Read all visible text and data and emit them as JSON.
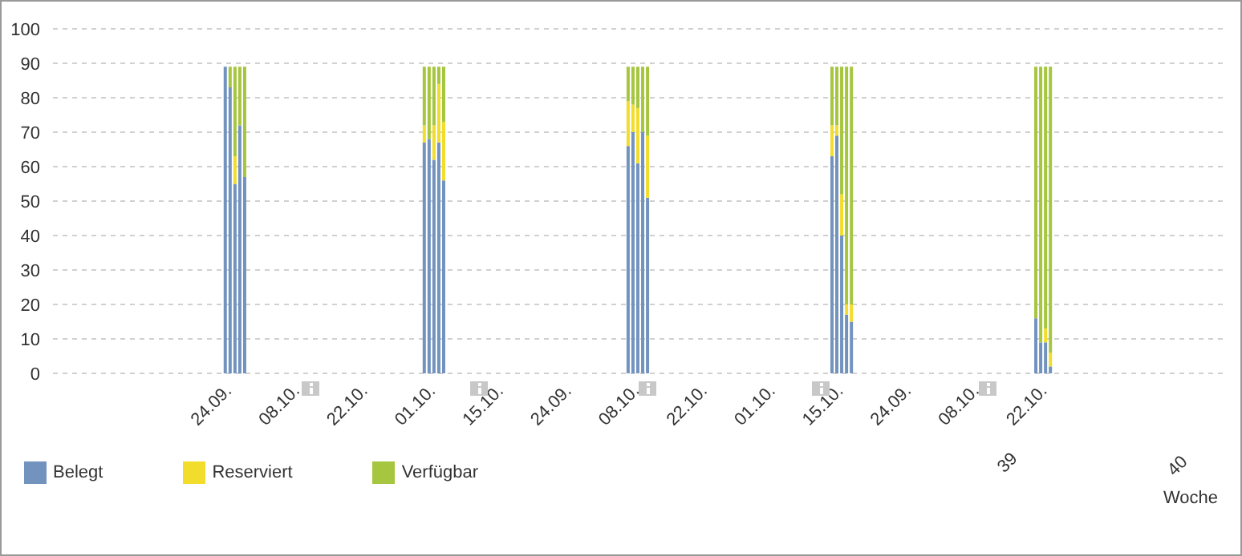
{
  "chart_data": {
    "type": "bar",
    "stacked": true,
    "xlabel": "Woche",
    "annotations": [
      "39",
      "40"
    ],
    "categories": [
      null,
      null,
      null,
      null,
      null,
      null,
      null,
      null,
      null,
      null,
      null,
      null,
      null,
      null,
      null,
      null,
      null,
      null,
      null,
      null,
      null,
      null,
      null,
      null,
      null,
      null,
      null,
      null,
      null,
      null,
      null,
      null,
      null,
      null,
      null,
      null,
      "24.09.",
      null,
      null,
      null,
      null,
      null,
      null,
      null,
      null,
      null,
      null,
      null,
      null,
      null,
      "08.10.",
      null,
      null,
      null,
      null,
      null,
      null,
      null,
      null,
      null,
      null,
      null,
      null,
      null,
      "22.10.",
      null,
      null,
      null,
      null,
      null,
      null,
      null,
      null,
      null,
      null,
      null,
      null,
      null,
      "01.10.",
      null,
      null,
      null,
      null,
      null,
      null,
      null,
      null,
      null,
      null,
      null,
      null,
      null,
      "15.10.",
      null,
      null,
      null,
      null,
      null,
      null,
      null,
      null,
      null,
      null,
      null,
      null,
      null,
      "24.09.",
      null,
      null,
      null,
      null,
      null,
      null,
      null,
      null,
      null,
      null,
      null,
      null,
      null,
      "08.10.",
      null,
      null,
      null,
      null,
      null,
      null,
      null,
      null,
      null,
      null,
      null,
      null,
      null,
      "22.10.",
      null,
      null,
      null,
      null,
      null,
      null,
      null,
      null,
      null,
      null,
      null,
      null,
      null,
      "01.10.",
      null,
      null,
      null,
      null,
      null,
      null,
      null,
      null,
      null,
      null,
      null,
      null,
      null,
      "15.10.",
      null,
      null,
      null,
      null,
      null,
      null,
      null,
      null,
      null,
      null,
      null,
      null,
      null,
      "24.09.",
      null,
      null,
      null,
      null,
      null,
      null,
      null,
      null,
      null,
      null,
      null,
      null,
      null,
      "08.10.",
      null,
      null,
      null,
      null,
      null,
      null,
      null,
      null,
      null,
      null,
      null,
      null,
      null,
      "22.10.",
      null,
      null,
      null,
      null,
      null,
      null,
      null,
      null,
      null,
      null,
      null,
      null,
      null,
      null,
      null,
      null,
      null,
      null,
      null,
      null,
      null,
      null,
      null,
      null,
      null,
      null,
      null,
      null,
      null,
      null,
      null,
      null,
      null,
      null,
      null,
      null,
      null
    ],
    "series": [
      {
        "name": "Belegt",
        "color": "#7393bf",
        "values": [
          null,
          null,
          null,
          null,
          null,
          null,
          null,
          null,
          null,
          null,
          null,
          null,
          null,
          null,
          null,
          null,
          null,
          null,
          null,
          null,
          null,
          null,
          null,
          null,
          null,
          null,
          null,
          null,
          null,
          null,
          null,
          null,
          null,
          null,
          null,
          89,
          83,
          55,
          72,
          57,
          null,
          null,
          null,
          null,
          null,
          null,
          null,
          null,
          null,
          null,
          null,
          null,
          null,
          null,
          null,
          null,
          null,
          null,
          null,
          null,
          null,
          null,
          null,
          null,
          null,
          null,
          null,
          null,
          null,
          null,
          null,
          null,
          null,
          null,
          null,
          null,
          67,
          68,
          62,
          67,
          56,
          null,
          null,
          null,
          null,
          null,
          null,
          null,
          null,
          null,
          null,
          null,
          null,
          null,
          null,
          null,
          null,
          null,
          null,
          null,
          null,
          null,
          null,
          null,
          null,
          null,
          null,
          null,
          null,
          null,
          null,
          null,
          null,
          null,
          null,
          null,
          null,
          null,
          66,
          70,
          61,
          70,
          51,
          null,
          null,
          null,
          null,
          null,
          null,
          null,
          null,
          null,
          null,
          null,
          null,
          null,
          null,
          null,
          null,
          null,
          null,
          null,
          null,
          null,
          null,
          null,
          null,
          null,
          null,
          null,
          null,
          null,
          null,
          null,
          null,
          null,
          null,
          null,
          null,
          null,
          63,
          69,
          40,
          17,
          15,
          null,
          null,
          null,
          null,
          null,
          null,
          null,
          null,
          null,
          null,
          null,
          null,
          null,
          null,
          null,
          null,
          null,
          null,
          null,
          null,
          null,
          null,
          null,
          null,
          null,
          null,
          null,
          null,
          null,
          null,
          null,
          null,
          null,
          null,
          null,
          null,
          null,
          16,
          9,
          9,
          2,
          null,
          null,
          null,
          null,
          null,
          null,
          null,
          null,
          null,
          null,
          null,
          null,
          null,
          null,
          null,
          null,
          null,
          null,
          null,
          null,
          null,
          null,
          null,
          null,
          null,
          null,
          null,
          null,
          null,
          null,
          null,
          null,
          null,
          null,
          null,
          null
        ]
      },
      {
        "name": "Reserviert",
        "color": "#f2dc2c",
        "values": [
          null,
          null,
          null,
          null,
          null,
          null,
          null,
          null,
          null,
          null,
          null,
          null,
          null,
          null,
          null,
          null,
          null,
          null,
          null,
          null,
          null,
          null,
          null,
          null,
          null,
          null,
          null,
          null,
          null,
          null,
          null,
          null,
          null,
          null,
          null,
          0,
          0,
          8,
          0,
          0,
          null,
          null,
          null,
          null,
          null,
          null,
          null,
          null,
          null,
          null,
          null,
          null,
          null,
          null,
          null,
          null,
          null,
          null,
          null,
          null,
          null,
          null,
          null,
          null,
          null,
          null,
          null,
          null,
          null,
          null,
          null,
          null,
          null,
          null,
          null,
          null,
          5,
          0,
          10,
          17,
          17,
          null,
          null,
          null,
          null,
          null,
          null,
          null,
          null,
          null,
          null,
          null,
          null,
          null,
          null,
          null,
          null,
          null,
          null,
          null,
          null,
          null,
          null,
          null,
          null,
          null,
          null,
          null,
          null,
          null,
          null,
          null,
          null,
          null,
          null,
          null,
          null,
          null,
          13,
          8,
          16,
          0,
          18,
          null,
          null,
          null,
          null,
          null,
          null,
          null,
          null,
          null,
          null,
          null,
          null,
          null,
          null,
          null,
          null,
          null,
          null,
          null,
          null,
          null,
          null,
          null,
          null,
          null,
          null,
          null,
          null,
          null,
          null,
          null,
          null,
          null,
          null,
          null,
          null,
          null,
          9,
          3,
          12,
          3,
          5,
          null,
          null,
          null,
          null,
          null,
          null,
          null,
          null,
          null,
          null,
          null,
          null,
          null,
          null,
          null,
          null,
          null,
          null,
          null,
          null,
          null,
          null,
          null,
          null,
          null,
          null,
          null,
          null,
          null,
          null,
          null,
          null,
          null,
          null,
          null,
          null,
          null,
          0,
          0,
          4,
          4,
          null,
          null,
          null,
          null,
          null,
          null,
          null,
          null,
          null,
          null,
          null,
          null,
          null,
          null,
          null,
          null,
          null,
          null,
          null,
          null,
          null,
          null,
          null,
          null,
          null,
          null,
          null,
          null,
          null,
          null,
          null,
          null,
          null,
          null,
          null,
          null
        ]
      },
      {
        "name": "Verfügbar",
        "color": "#a6c63f",
        "values": [
          null,
          null,
          null,
          null,
          null,
          null,
          null,
          null,
          null,
          null,
          null,
          null,
          null,
          null,
          null,
          null,
          null,
          null,
          null,
          null,
          null,
          null,
          null,
          null,
          null,
          null,
          null,
          null,
          null,
          null,
          null,
          null,
          null,
          null,
          null,
          0,
          6,
          26,
          17,
          32,
          null,
          null,
          null,
          null,
          null,
          null,
          null,
          null,
          null,
          null,
          null,
          null,
          null,
          null,
          null,
          null,
          null,
          null,
          null,
          null,
          null,
          null,
          null,
          null,
          null,
          null,
          null,
          null,
          null,
          null,
          null,
          null,
          null,
          null,
          null,
          null,
          17,
          21,
          17,
          5,
          16,
          null,
          null,
          null,
          null,
          null,
          null,
          null,
          null,
          null,
          null,
          null,
          null,
          null,
          null,
          null,
          null,
          null,
          null,
          null,
          null,
          null,
          null,
          null,
          null,
          null,
          null,
          null,
          null,
          null,
          null,
          null,
          null,
          null,
          null,
          null,
          null,
          null,
          10,
          11,
          12,
          19,
          20,
          null,
          null,
          null,
          null,
          null,
          null,
          null,
          null,
          null,
          null,
          null,
          null,
          null,
          null,
          null,
          null,
          null,
          null,
          null,
          null,
          null,
          null,
          null,
          null,
          null,
          null,
          null,
          null,
          null,
          null,
          null,
          null,
          null,
          null,
          null,
          null,
          null,
          17,
          17,
          37,
          69,
          69,
          null,
          null,
          null,
          null,
          null,
          null,
          null,
          null,
          null,
          null,
          null,
          null,
          null,
          null,
          null,
          null,
          null,
          null,
          null,
          null,
          null,
          null,
          null,
          null,
          null,
          null,
          null,
          null,
          null,
          null,
          null,
          null,
          null,
          null,
          null,
          null,
          null,
          73,
          80,
          76,
          83,
          null,
          null,
          null,
          null,
          null,
          null,
          null,
          null,
          null,
          null,
          null,
          null,
          null,
          null,
          null,
          null,
          null,
          null,
          null,
          null,
          null,
          null,
          null,
          null,
          null,
          null,
          null,
          null,
          null,
          null,
          null,
          null,
          null,
          null,
          null,
          null
        ]
      }
    ],
    "ylim": [
      0,
      100
    ],
    "yticks": [
      0,
      10,
      20,
      30,
      40,
      50,
      60,
      70,
      80,
      90,
      100
    ],
    "grid": "y",
    "legend": "bottom left"
  }
}
